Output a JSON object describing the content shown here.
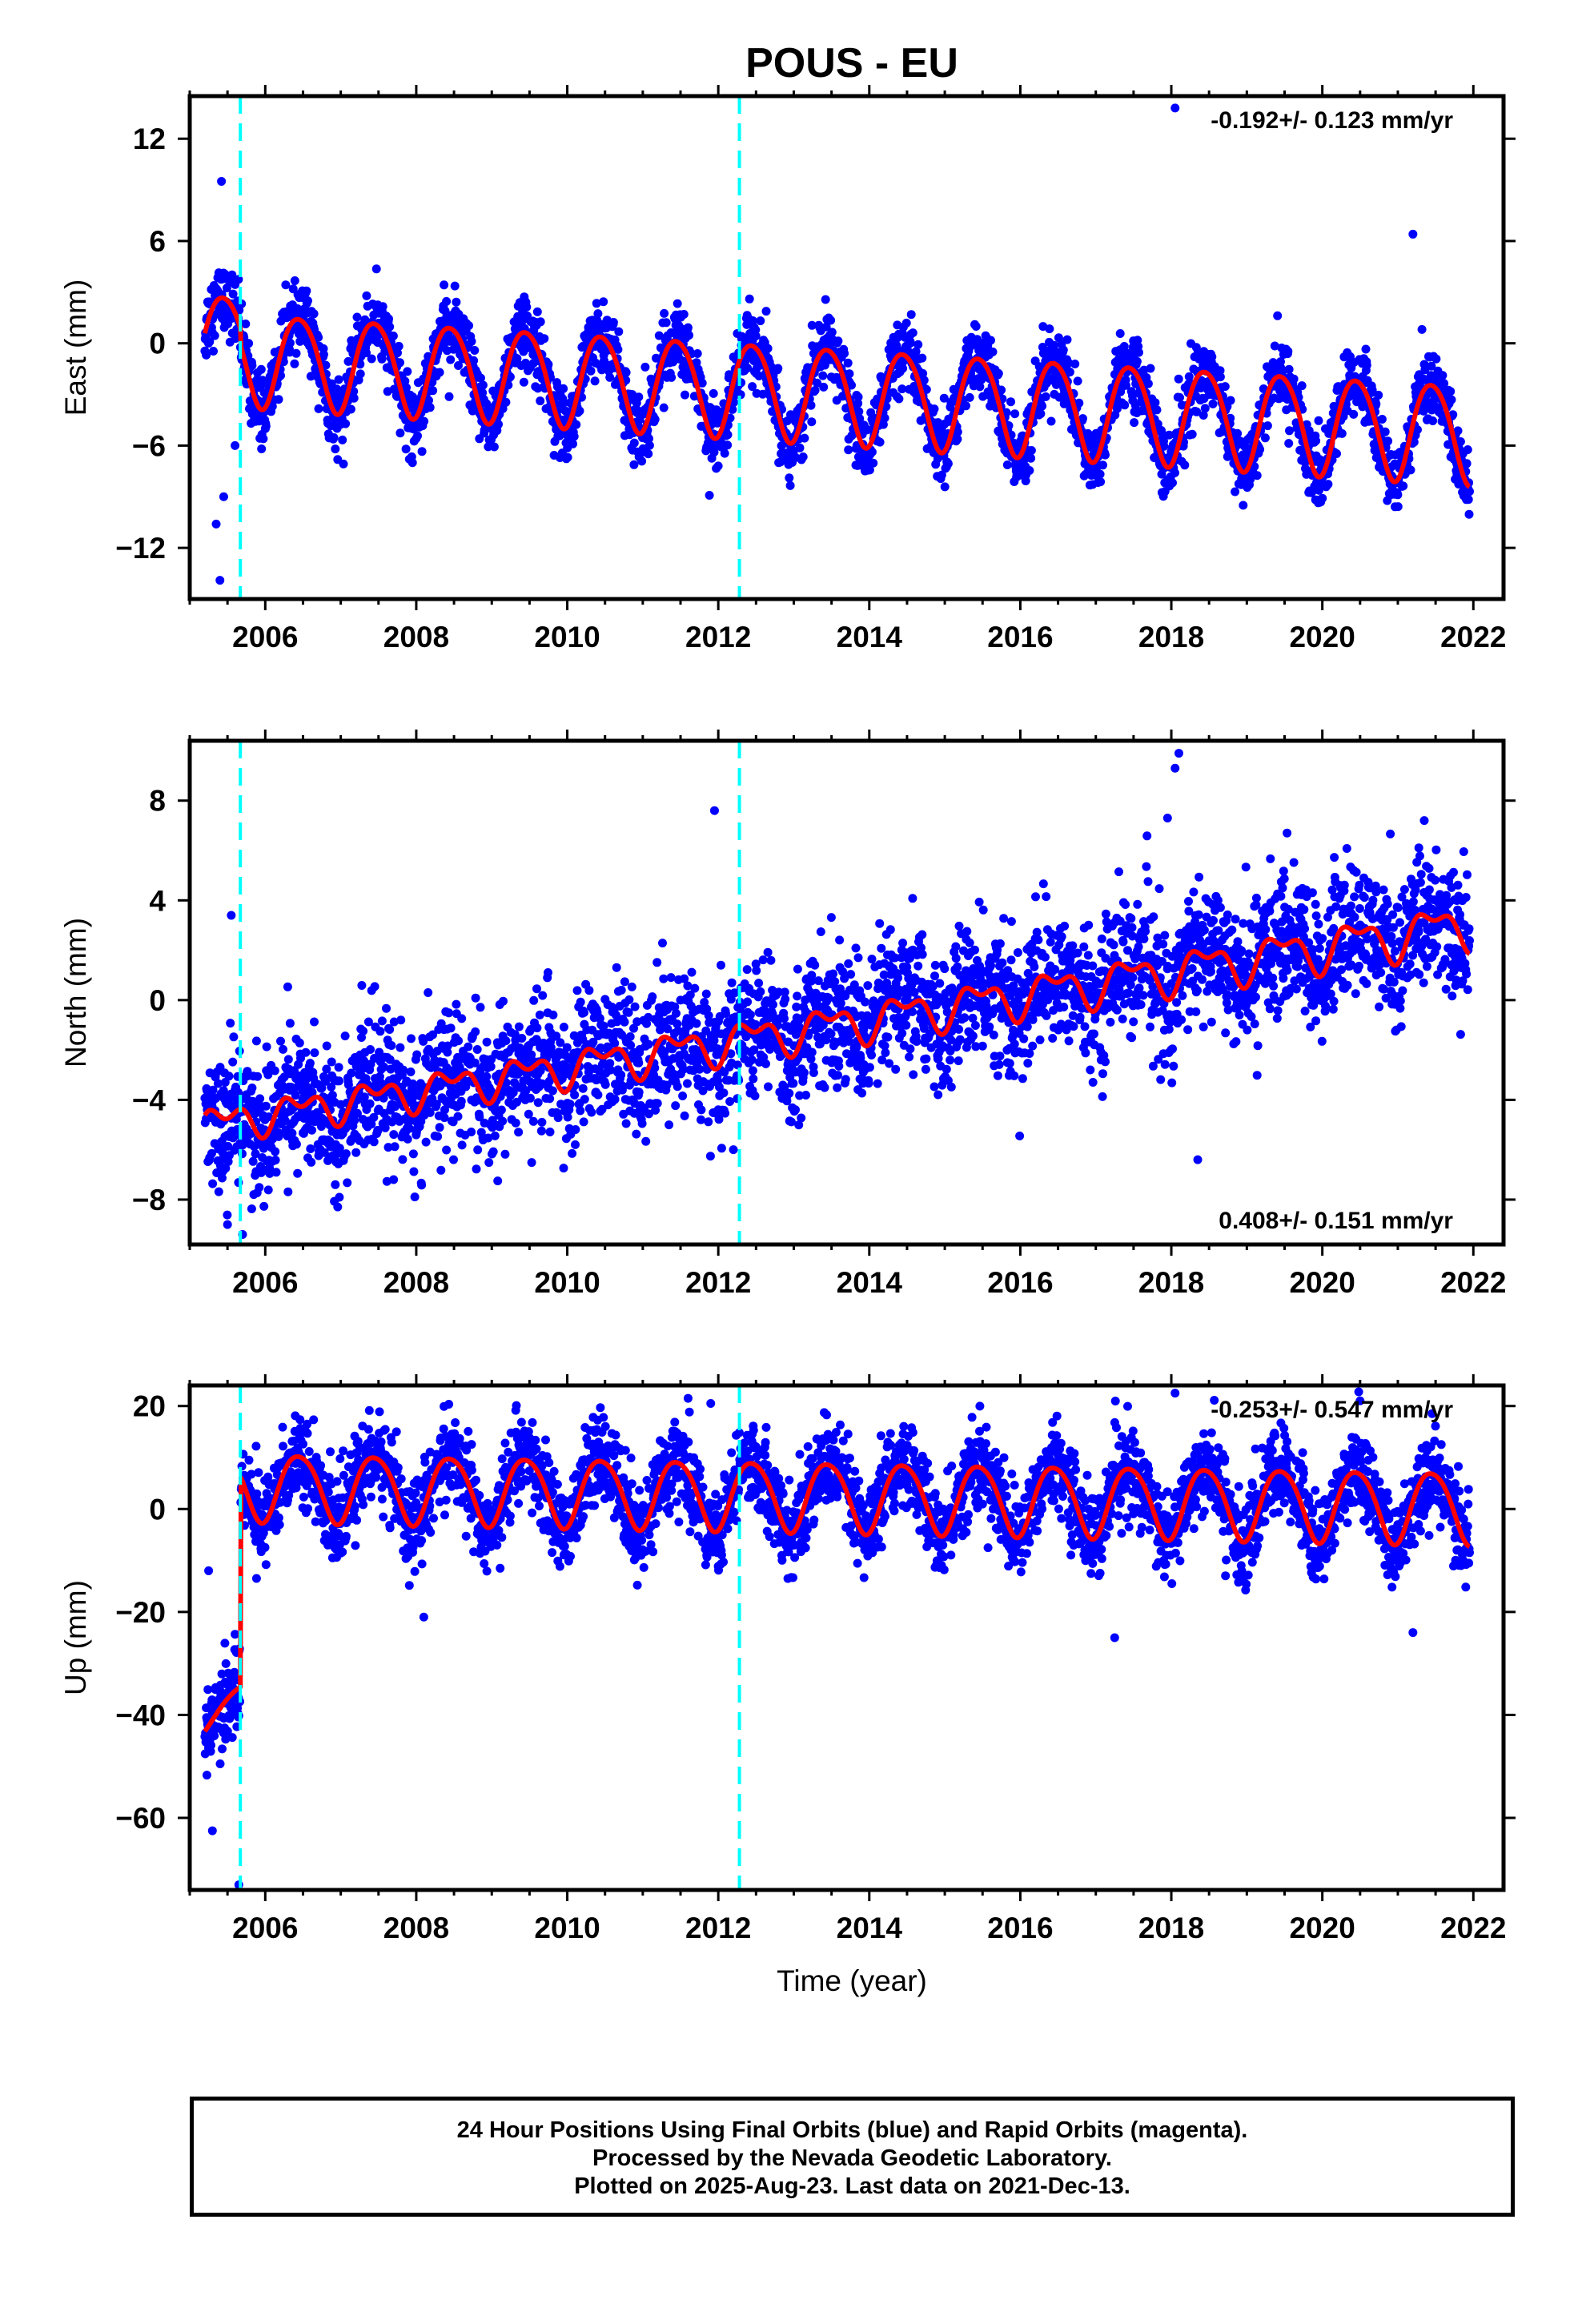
{
  "title": "POUS - EU",
  "xlabel": "Time (year)",
  "footer": {
    "line1": "24 Hour Positions Using Final Orbits (blue) and Rapid Orbits (magenta).",
    "line2": "Processed by the Nevada Geodetic Laboratory.",
    "line3": "Plotted on 2025-Aug-23. Last data on 2021-Dec-13."
  },
  "colors": {
    "final_orbits": "#0000ff",
    "model_fit": "#ff0000",
    "equipment_change": "#00ffff",
    "frame": "#000000"
  },
  "chart_data": [
    {
      "type": "scatter",
      "panel": "east",
      "ylabel": "East (mm)",
      "rate_text": "-0.192+/- 0.123 mm/yr",
      "rate_position": "top-right",
      "xlim": [
        2005.0,
        2022.4
      ],
      "ylim": [
        -15.0,
        14.5
      ],
      "x_ticks": [
        2006,
        2008,
        2010,
        2012,
        2014,
        2016,
        2018,
        2020,
        2022
      ],
      "y_ticks": [
        -12,
        -6,
        0,
        6,
        12
      ],
      "x_start": 2005.2,
      "x_end": 2021.95,
      "steps": [
        {
          "x": 2005.67,
          "dy": -1.0
        }
      ],
      "vertical_lines": [
        2005.67,
        2012.28
      ],
      "series": [
        {
          "role": "daily_positions",
          "color": "#0000ff"
        },
        {
          "role": "model_fit",
          "color": "#ff0000"
        }
      ],
      "model": {
        "offset": 0.3,
        "trend": -0.27,
        "annual_amp_start": 2.7,
        "annual_amp_end": 2.9,
        "semiannual_amp": 0.3,
        "scatter": 1.0
      },
      "outliers": [
        {
          "x": 2005.4,
          "y": -13.9
        },
        {
          "x": 2005.35,
          "y": -10.6
        },
        {
          "x": 2005.45,
          "y": -9.0
        },
        {
          "x": 2005.42,
          "y": 9.5
        },
        {
          "x": 2005.6,
          "y": -6.0
        },
        {
          "x": 2014.9,
          "y": -7.8
        },
        {
          "x": 2018.05,
          "y": 13.8
        },
        {
          "x": 2021.2,
          "y": 6.4
        },
        {
          "x": 2018.95,
          "y": -7.8
        },
        {
          "x": 2021.1,
          "y": -7.4
        },
        {
          "x": 2012.8,
          "y": -7.0
        }
      ]
    },
    {
      "type": "scatter",
      "panel": "north",
      "ylabel": "North (mm)",
      "rate_text": "0.408+/- 0.151 mm/yr",
      "rate_position": "bottom-right",
      "xlim": [
        2005.0,
        2022.4
      ],
      "ylim": [
        -9.8,
        10.4
      ],
      "x_ticks": [
        2006,
        2008,
        2010,
        2012,
        2014,
        2016,
        2018,
        2020,
        2022
      ],
      "y_ticks": [
        -8,
        -4,
        0,
        4,
        8
      ],
      "x_start": 2005.2,
      "x_end": 2021.95,
      "steps": [],
      "vertical_lines": [
        2005.67,
        2012.28
      ],
      "series": [
        {
          "role": "daily_positions",
          "color": "#0000ff"
        },
        {
          "role": "model_fit",
          "color": "#ff0000"
        }
      ],
      "model": {
        "offset": -5.0,
        "trend": 0.48,
        "annual_amp_start": 0.5,
        "annual_amp_end": 0.8,
        "semiannual_amp": 0.4,
        "scatter": 1.35
      },
      "outliers": [
        {
          "x": 2011.95,
          "y": 7.6
        },
        {
          "x": 2018.1,
          "y": 9.9
        },
        {
          "x": 2018.05,
          "y": 9.3
        },
        {
          "x": 2018.35,
          "y": -6.4
        },
        {
          "x": 2005.7,
          "y": -9.4
        },
        {
          "x": 2005.5,
          "y": -9.0
        },
        {
          "x": 2005.55,
          "y": 3.4
        },
        {
          "x": 2012.2,
          "y": -6.0
        },
        {
          "x": 2007.7,
          "y": -7.2
        },
        {
          "x": 2021.35,
          "y": 7.2
        },
        {
          "x": 2017.95,
          "y": 7.3
        }
      ]
    },
    {
      "type": "scatter",
      "panel": "up",
      "ylabel": "Up (mm)",
      "rate_text": "-0.253+/- 0.547 mm/yr",
      "rate_position": "top-right",
      "xlim": [
        2005.0,
        2022.4
      ],
      "ylim": [
        -74.0,
        24.0
      ],
      "x_ticks": [
        2006,
        2008,
        2010,
        2012,
        2014,
        2016,
        2018,
        2020,
        2022
      ],
      "y_ticks": [
        -60,
        -40,
        -20,
        0,
        20
      ],
      "x_start": 2005.2,
      "x_end": 2021.95,
      "steps": [
        {
          "x": 2005.67,
          "dy": 40.0
        }
      ],
      "vertical_lines": [
        2005.67,
        2012.28
      ],
      "series": [
        {
          "role": "daily_positions",
          "color": "#0000ff"
        },
        {
          "role": "model_fit",
          "color": "#ff0000"
        }
      ],
      "model": {
        "offset": -42.5,
        "trend": 15.0,
        "trend_after_step": -0.25,
        "annual_amp_start": 6.5,
        "annual_amp_end": 7.0,
        "semiannual_amp": 0.8,
        "scatter": 4.2
      },
      "outliers": [
        {
          "x": 2005.65,
          "y": -73.0
        },
        {
          "x": 2005.3,
          "y": -62.5
        },
        {
          "x": 2005.25,
          "y": -12.0
        },
        {
          "x": 2011.6,
          "y": 21.5
        },
        {
          "x": 2018.05,
          "y": 22.5
        },
        {
          "x": 2020.5,
          "y": 21.0
        },
        {
          "x": 2017.25,
          "y": -25.0
        },
        {
          "x": 2021.2,
          "y": -24.0
        },
        {
          "x": 2008.1,
          "y": -21.0
        },
        {
          "x": 2011.9,
          "y": 20.5
        }
      ]
    }
  ]
}
